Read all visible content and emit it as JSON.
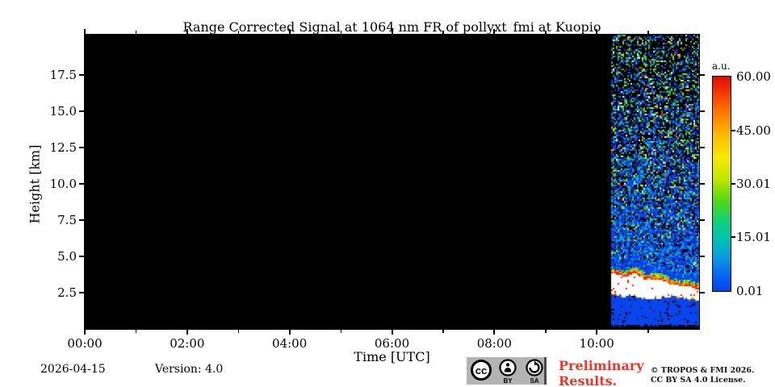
{
  "chart_data": {
    "type": "heatmap",
    "title": "Range Corrected Signal at 1064 nm FR of pollyxt_fmi at Kuopio",
    "xlabel": "Time [UTC]",
    "ylabel": "Height [km]",
    "x_axis": {
      "range_hours": [
        0,
        12
      ],
      "major_hours": [
        0,
        2,
        4,
        6,
        8,
        10
      ],
      "minor_hours": [
        1,
        3,
        5,
        7,
        9,
        11
      ],
      "tick_labels": [
        "00:00",
        "02:00",
        "04:00",
        "06:00",
        "08:00",
        "10:00"
      ]
    },
    "y_axis": {
      "range_km": [
        0,
        20.28
      ],
      "tick_values": [
        2.5,
        5.0,
        7.5,
        10.0,
        12.5,
        15.0,
        17.5
      ],
      "tick_labels": [
        "2.5",
        "5.0",
        "7.5",
        "10.0",
        "12.5",
        "15.0",
        "17.5"
      ]
    },
    "colorbar": {
      "label": "a.u.",
      "value_range": [
        0,
        60
      ],
      "ticks": [
        "60.00",
        "45.00",
        "30.01",
        "15.01",
        "0.01"
      ],
      "tick_values": [
        60.0,
        45.0,
        30.01,
        15.01,
        0.01
      ],
      "ticks_with_mark": [
        45.0,
        30.01,
        15.01
      ],
      "gradient": [
        [
          0,
          "#dd0e00"
        ],
        [
          8,
          "#f63b00"
        ],
        [
          17,
          "#ff7a00"
        ],
        [
          28,
          "#ffc000"
        ],
        [
          38,
          "#f6ea00"
        ],
        [
          48,
          "#bfe800"
        ],
        [
          58,
          "#52d816"
        ],
        [
          68,
          "#0ecf7e"
        ],
        [
          76,
          "#00c2b4"
        ],
        [
          85,
          "#0b97e0"
        ],
        [
          93,
          "#0663f2"
        ],
        [
          100,
          "#0441ec"
        ]
      ]
    },
    "background_value": "no data (black)",
    "signal_region": {
      "start_hour": 10.28,
      "end_hour": 12.0,
      "seed": 1337,
      "surface_black_km": 0.28,
      "cloud_band": {
        "top_km_start": 4.1,
        "top_km_end": 3.15,
        "bottom_km_start": 2.5,
        "bottom_km_end": 1.85
      },
      "description": "Noisy backscatter speckle above ~4.5 km (blue/green/yellow/red on black), dense blue signal below ~5 km, saturated white cloud band with red-orange fringes sloping from ~4.1 km down to ~3.1 km, solid blue below band down to ~0.3 km, black overlap region at surface."
    },
    "palette": {
      "blue": "#0546ee",
      "lightblue": "#00a6f0",
      "teal": "#00c8a8",
      "green": "#2ad41e",
      "yellowgreen": "#aadf00",
      "yellow": "#ffe400",
      "orange": "#ff9000",
      "red": "#f52800",
      "white": "#ffffff",
      "black": "#000000"
    }
  },
  "footer": {
    "date": "2026-04-15",
    "version": "Version: 4.0",
    "preliminary": "Preliminary\nResults.",
    "copyright": "© TROPOS & FMI 2026.\nCC BY SA 4.0 License.",
    "badge": {
      "cc": "cc",
      "by": "BY",
      "sa": "SA"
    }
  }
}
